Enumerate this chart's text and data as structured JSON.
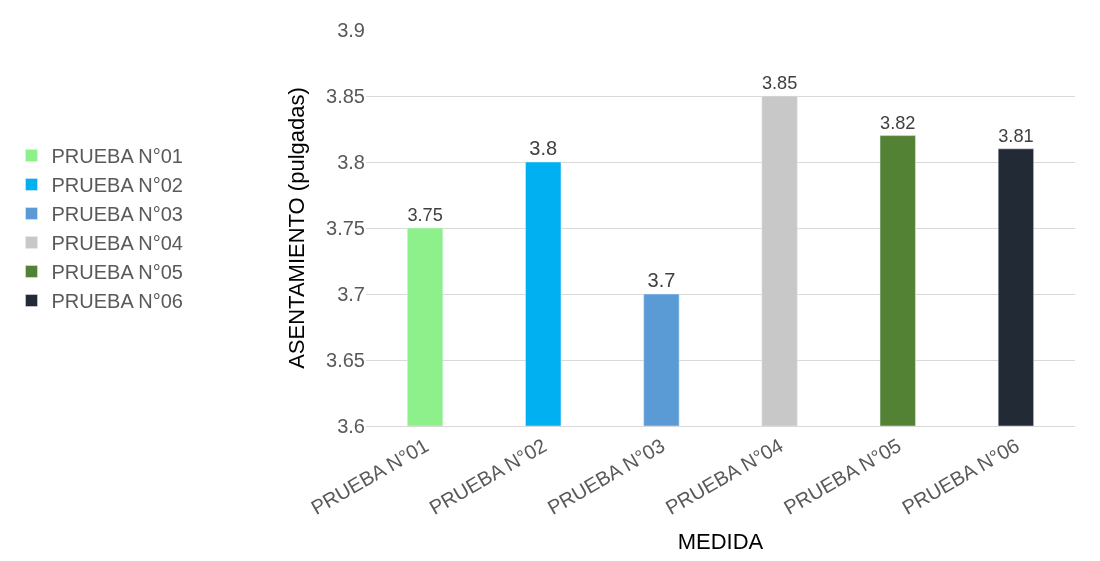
{
  "chart_data": {
    "type": "bar",
    "xlabel": "MEDIDA",
    "ylabel": "ASENTAMIENTO (pulgadas)",
    "categories": [
      "PRUEBA N°01",
      "PRUEBA N°02",
      "PRUEBA N°03",
      "PRUEBA N°04",
      "PRUEBA N°05",
      "PRUEBA N°06"
    ],
    "series": [
      {
        "name": "PRUEBA N°01",
        "color": "#8ef08a",
        "values": [
          3.75,
          null,
          null,
          null,
          null,
          null
        ]
      },
      {
        "name": "PRUEBA N°02",
        "color": "#00b0f0",
        "values": [
          null,
          3.8,
          null,
          null,
          null,
          null
        ]
      },
      {
        "name": "PRUEBA N°03",
        "color": "#5b9bd5",
        "values": [
          null,
          null,
          3.7,
          null,
          null,
          null
        ]
      },
      {
        "name": "PRUEBA N°04",
        "color": "#c8c8c8",
        "values": [
          null,
          null,
          null,
          3.85,
          null,
          null
        ]
      },
      {
        "name": "PRUEBA N°05",
        "color": "#548235",
        "values": [
          null,
          null,
          null,
          null,
          3.82,
          null
        ]
      },
      {
        "name": "PRUEBA N°06",
        "color": "#222a35",
        "values": [
          null,
          null,
          null,
          null,
          null,
          3.81
        ]
      }
    ],
    "ylim": [
      3.6,
      3.9
    ],
    "yticks": [
      3.6,
      3.65,
      3.7,
      3.75,
      3.8,
      3.85,
      3.9
    ],
    "grid": "y",
    "legend": "left",
    "data_labels": true
  }
}
